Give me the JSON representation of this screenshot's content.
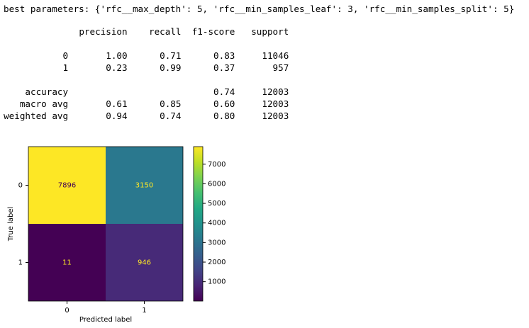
{
  "output_text": "best parameters: {'rfc__max_depth': 5, 'rfc__min_samples_leaf': 3, 'rfc__min_samples_split': 5}",
  "report": {
    "headers": [
      "precision",
      "recall",
      "f1-score",
      "support"
    ],
    "rows": [
      {
        "label": "0",
        "precision": "1.00",
        "recall": "0.71",
        "f1-score": "0.83",
        "support": "11046"
      },
      {
        "label": "1",
        "precision": "0.23",
        "recall": "0.99",
        "f1-score": "0.37",
        "support": "957"
      },
      {
        "label": "accuracy",
        "f1-score": "0.74",
        "support": "12003"
      },
      {
        "label": "macro avg",
        "precision": "0.61",
        "recall": "0.85",
        "f1-score": "0.60",
        "support": "12003"
      },
      {
        "label": "weighted avg",
        "precision": "0.94",
        "recall": "0.74",
        "f1-score": "0.80",
        "support": "12003"
      }
    ]
  },
  "chart_data": {
    "type": "heatmap",
    "xlabel": "Predicted label",
    "ylabel": "True label",
    "x_categories": [
      "0",
      "1"
    ],
    "y_categories": [
      "0",
      "1"
    ],
    "values": [
      [
        7896,
        3150
      ],
      [
        11,
        946
      ]
    ],
    "colormap": "viridis",
    "colorbar_ticks": [
      1000,
      2000,
      3000,
      4000,
      5000,
      6000,
      7000
    ]
  }
}
